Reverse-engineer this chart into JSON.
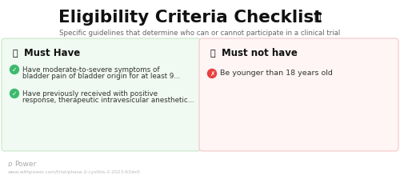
{
  "title": "Eligibility Criteria Checklist",
  "subtitle": "Specific guidelines that determine who can or cannot participate in a clinical trial",
  "bg_color": "#ffffff",
  "title_color": "#111111",
  "subtitle_color": "#666666",
  "left_box": {
    "bg_color": "#f0faf2",
    "border_color": "#c8e6c9",
    "header": "Must Have",
    "header_color": "#111111",
    "icon_color": "#f5a623",
    "items": [
      {
        "line1": "Have moderate-to-severe symptoms of",
        "line2": "bladder pain of bladder origin for at least 9...",
        "icon_bg": "#3dba6f"
      },
      {
        "line1": "Have previously received with positive",
        "line2": "response, therapeutic intravesicular anesthetic...",
        "icon_bg": "#3dba6f"
      }
    ]
  },
  "right_box": {
    "bg_color": "#fff5f5",
    "border_color": "#f5c6c6",
    "header": "Must not have",
    "header_color": "#111111",
    "icon_color": "#f5a623",
    "items": [
      {
        "text": "Be younger than 18 years old",
        "icon_bg": "#e84040"
      }
    ]
  },
  "footer_logo": "D Power",
  "footer_url": "www.withpower.com/trial/phase-2-cystitis-2-2023-63de5",
  "clipboard_color": "#7b5ea7"
}
